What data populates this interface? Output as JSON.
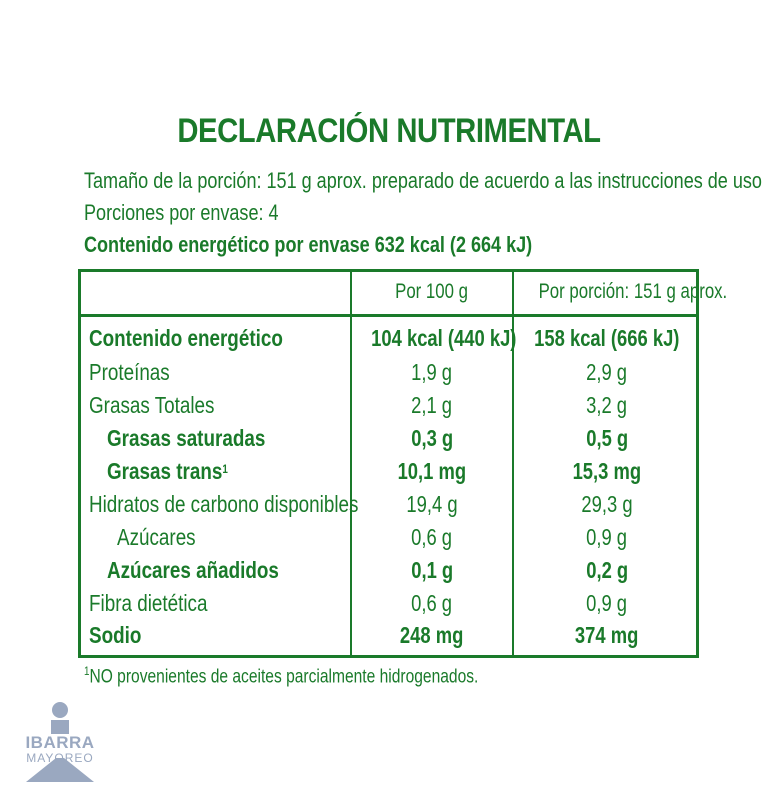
{
  "label": {
    "title": "DECLARACIÓN NUTRIMENTAL",
    "serving_size": "Tamaño de la porción: 151 g aprox. preparado de acuerdo a las instrucciones de uso",
    "servings_per_container": "Porciones por envase: 4",
    "energy_per_container": "Contenido energético por envase 632 kcal (2 664 kJ)",
    "columns": {
      "per100": "Por 100 g",
      "per_serving": "Por porción: 151 g aprox."
    },
    "rows": [
      {
        "name": "Contenido energético",
        "per100": "104 kcal (440 kJ)",
        "per_serving": "158 kcal (666 kJ)",
        "bold": true
      },
      {
        "name": "Proteínas",
        "per100": "1,9 g",
        "per_serving": "2,9 g"
      },
      {
        "name": "Grasas Totales",
        "per100": "2,1 g",
        "per_serving": "3,2 g"
      },
      {
        "name": "Grasas saturadas",
        "per100": "0,3 g",
        "per_serving": "0,5 g",
        "bold": true
      },
      {
        "name": "Grasas trans",
        "marker": "1",
        "per100": "10,1 mg",
        "per_serving": "15,3 mg",
        "bold": true
      },
      {
        "name": "Hidratos de carbono disponibles",
        "per100": "19,4 g",
        "per_serving": "29,3 g"
      },
      {
        "name": "Azúcares",
        "per100": "0,6 g",
        "per_serving": "0,9 g"
      },
      {
        "name": "Azúcares añadidos",
        "per100": "0,1 g",
        "per_serving": "0,2 g",
        "bold": true
      },
      {
        "name": "Fibra dietética",
        "per100": "0,6 g",
        "per_serving": "0,9 g"
      },
      {
        "name": "Sodio",
        "per100": "248 mg",
        "per_serving": "374 mg",
        "bold": true
      }
    ],
    "footnote_marker": "1",
    "footnote": "NO provenientes de aceites parcialmente hidrogenados."
  },
  "watermark": {
    "name": "IBARRA",
    "sub": "MAYOREO",
    "color": "#9aa8c0",
    "icon": "person-icon"
  },
  "colors": {
    "text": "#1a7a2a",
    "background": "#ffffff"
  }
}
